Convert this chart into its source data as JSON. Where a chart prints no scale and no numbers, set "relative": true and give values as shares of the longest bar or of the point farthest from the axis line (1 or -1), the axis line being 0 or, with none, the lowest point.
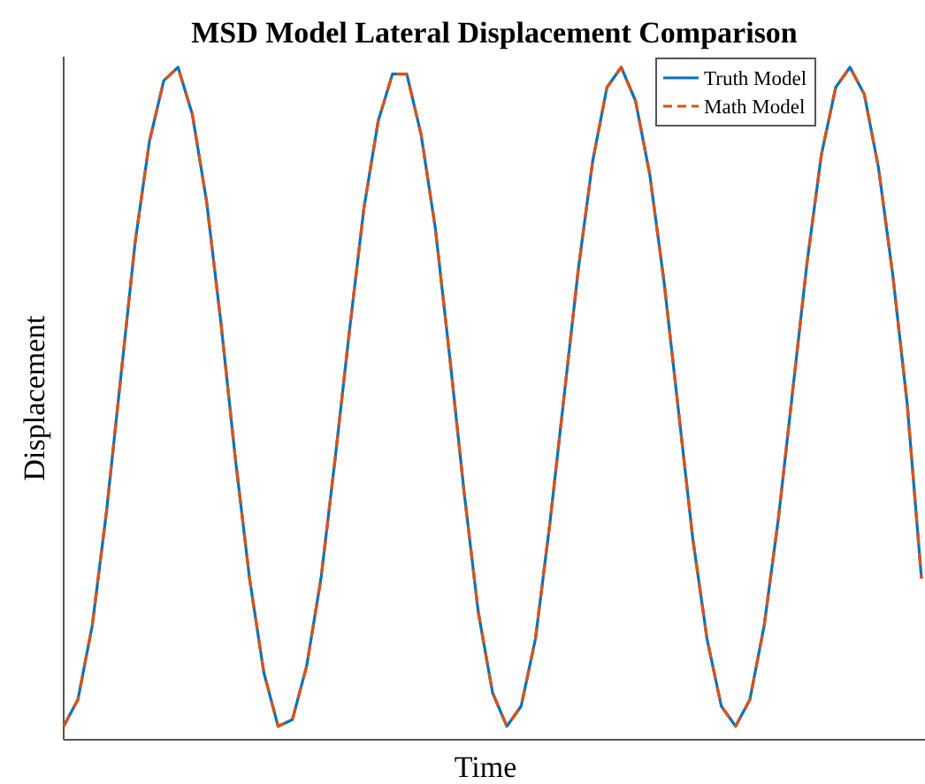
{
  "chart_data": {
    "type": "line",
    "title": "MSD Model Lateral Displacement Comparison",
    "xlabel": "Time",
    "ylabel": "Displacement",
    "relative": true,
    "legend": "top right",
    "categories": [
      null,
      null,
      null,
      null,
      null,
      null,
      null,
      null,
      null,
      null,
      null,
      null,
      null,
      null,
      null,
      null,
      null,
      null,
      null,
      null,
      null,
      null,
      null,
      null,
      null,
      null,
      null,
      null,
      null,
      null,
      null,
      null,
      null,
      null,
      null,
      null,
      null,
      null,
      null,
      null,
      null,
      null,
      null,
      null,
      null,
      null,
      null,
      null,
      null,
      null,
      null,
      null,
      null,
      null,
      null,
      null,
      null,
      null,
      null,
      null,
      null
    ],
    "series": [
      {
        "name": "Truth Model",
        "color": "#0072bd",
        "line_style": "solid",
        "values": [
          0.02,
          0.06,
          0.17,
          0.34,
          0.54,
          0.74,
          0.89,
          0.98,
          1.0,
          0.93,
          0.8,
          0.62,
          0.42,
          0.24,
          0.1,
          0.02,
          0.03,
          0.11,
          0.24,
          0.42,
          0.61,
          0.79,
          0.92,
          0.99,
          0.99,
          0.9,
          0.76,
          0.57,
          0.37,
          0.19,
          0.07,
          0.02,
          0.05,
          0.15,
          0.32,
          0.51,
          0.7,
          0.86,
          0.97,
          1.0,
          0.95,
          0.84,
          0.68,
          0.49,
          0.3,
          0.15,
          0.05,
          0.02,
          0.06,
          0.17,
          0.33,
          0.52,
          0.71,
          0.87,
          0.97,
          1.0,
          0.96,
          0.85,
          0.69,
          0.5,
          0.24
        ]
      },
      {
        "name": "Math Model",
        "color": "#d95319",
        "line_style": "dashed",
        "values": [
          0.02,
          0.06,
          0.17,
          0.34,
          0.54,
          0.74,
          0.89,
          0.98,
          1.0,
          0.93,
          0.8,
          0.62,
          0.42,
          0.24,
          0.1,
          0.02,
          0.03,
          0.11,
          0.24,
          0.42,
          0.61,
          0.79,
          0.92,
          0.99,
          0.99,
          0.9,
          0.76,
          0.57,
          0.37,
          0.19,
          0.07,
          0.02,
          0.05,
          0.15,
          0.32,
          0.51,
          0.7,
          0.86,
          0.97,
          1.0,
          0.95,
          0.84,
          0.68,
          0.49,
          0.3,
          0.15,
          0.05,
          0.02,
          0.06,
          0.17,
          0.33,
          0.52,
          0.71,
          0.87,
          0.97,
          1.0,
          0.96,
          0.85,
          0.69,
          0.5,
          0.24
        ]
      }
    ]
  }
}
